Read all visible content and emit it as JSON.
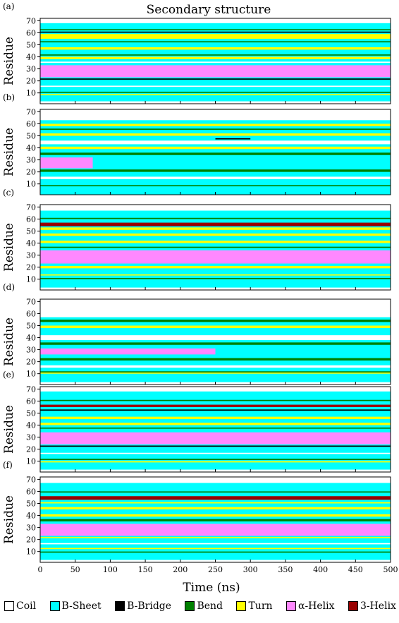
{
  "chart_data": {
    "type": "heatmap",
    "title": "Secondary structure",
    "xlabel": "Time (ns)",
    "ylabel": "Residue",
    "xlim": [
      0,
      500
    ],
    "ylim": [
      1,
      72
    ],
    "x_ticks": [
      0,
      50,
      100,
      150,
      200,
      250,
      300,
      350,
      400,
      450,
      500
    ],
    "y_ticks": [
      10,
      20,
      30,
      40,
      50,
      60,
      70
    ],
    "legend": [
      {
        "label": "Coil",
        "color": "#ffffff"
      },
      {
        "label": "B-Sheet",
        "color": "#00ffff"
      },
      {
        "label": "B-Bridge",
        "color": "#000000"
      },
      {
        "label": "Bend",
        "color": "#008000"
      },
      {
        "label": "Turn",
        "color": "#ffff00"
      },
      {
        "label": "α-Helix",
        "color": "#ff88ff"
      },
      {
        "label": "3-Helix",
        "color": "#990000"
      }
    ],
    "panels": [
      {
        "label": "(a)",
        "bands": [
          {
            "structure": "B-Sheet",
            "start": 1,
            "end": 72,
            "t_start": 0,
            "t_end": 500
          },
          {
            "structure": "Coil",
            "start": 1,
            "end": 3,
            "t_start": 0,
            "t_end": 500
          },
          {
            "structure": "Turn",
            "start": 8,
            "end": 9,
            "t_start": 0,
            "t_end": 500
          },
          {
            "structure": "Bend",
            "start": 10,
            "end": 11,
            "t_start": 0,
            "t_end": 500
          },
          {
            "structure": "Coil",
            "start": 15,
            "end": 16,
            "t_start": 0,
            "t_end": 500
          },
          {
            "structure": "B-Bridge",
            "start": 21,
            "end": 22,
            "t_start": 0,
            "t_end": 500
          },
          {
            "structure": "α-Helix",
            "start": 23,
            "end": 33,
            "t_start": 0,
            "t_end": 500
          },
          {
            "structure": "Coil",
            "start": 35,
            "end": 36,
            "t_start": 0,
            "t_end": 500
          },
          {
            "structure": "Turn",
            "start": 38,
            "end": 40,
            "t_start": 0,
            "t_end": 500
          },
          {
            "structure": "Bend",
            "start": 41,
            "end": 42,
            "t_start": 0,
            "t_end": 500
          },
          {
            "structure": "Turn",
            "start": 46,
            "end": 48,
            "t_start": 0,
            "t_end": 500
          },
          {
            "structure": "Bend",
            "start": 52,
            "end": 53,
            "t_start": 0,
            "t_end": 500
          },
          {
            "structure": "Turn",
            "start": 55,
            "end": 59,
            "t_start": 0,
            "t_end": 500
          },
          {
            "structure": "B-Bridge",
            "start": 60,
            "end": 61,
            "t_start": 0,
            "t_end": 500
          },
          {
            "structure": "Bend",
            "start": 62,
            "end": 63,
            "t_start": 0,
            "t_end": 500
          },
          {
            "structure": "Coil",
            "start": 68,
            "end": 72,
            "t_start": 0,
            "t_end": 500
          }
        ]
      },
      {
        "label": "(b)",
        "bands": [
          {
            "structure": "B-Sheet",
            "start": 1,
            "end": 72,
            "t_start": 0,
            "t_end": 500
          },
          {
            "structure": "Bend",
            "start": 8,
            "end": 9,
            "t_start": 0,
            "t_end": 500
          },
          {
            "structure": "Coil",
            "start": 14,
            "end": 16,
            "t_start": 0,
            "t_end": 500
          },
          {
            "structure": "Bend",
            "start": 20,
            "end": 22,
            "t_start": 0,
            "t_end": 500
          },
          {
            "structure": "α-Helix",
            "start": 23,
            "end": 32,
            "t_start": 0,
            "t_end": 75
          },
          {
            "structure": "Bend",
            "start": 34,
            "end": 36,
            "t_start": 0,
            "t_end": 500
          },
          {
            "structure": "Turn",
            "start": 39,
            "end": 41,
            "t_start": 0,
            "t_end": 500
          },
          {
            "structure": "Coil",
            "start": 43,
            "end": 46,
            "t_start": 0,
            "t_end": 500
          },
          {
            "structure": "B-Bridge",
            "start": 47,
            "end": 48,
            "t_start": 250,
            "t_end": 300
          },
          {
            "structure": "Turn",
            "start": 50,
            "end": 52,
            "t_start": 0,
            "t_end": 500
          },
          {
            "structure": "Bend",
            "start": 55,
            "end": 56,
            "t_start": 0,
            "t_end": 500
          },
          {
            "structure": "Turn",
            "start": 58,
            "end": 60,
            "t_start": 0,
            "t_end": 500
          },
          {
            "structure": "Coil",
            "start": 63,
            "end": 72,
            "t_start": 0,
            "t_end": 500
          }
        ]
      },
      {
        "label": "(c)",
        "bands": [
          {
            "structure": "B-Sheet",
            "start": 1,
            "end": 72,
            "t_start": 0,
            "t_end": 500
          },
          {
            "structure": "Coil",
            "start": 1,
            "end": 3,
            "t_start": 0,
            "t_end": 500
          },
          {
            "structure": "Bend",
            "start": 10,
            "end": 11,
            "t_start": 0,
            "t_end": 500
          },
          {
            "structure": "Turn",
            "start": 13,
            "end": 14,
            "t_start": 0,
            "t_end": 500
          },
          {
            "structure": "Turn",
            "start": 19,
            "end": 21,
            "t_start": 0,
            "t_end": 500
          },
          {
            "structure": "α-Helix",
            "start": 23,
            "end": 34,
            "t_start": 0,
            "t_end": 500
          },
          {
            "structure": "Bend",
            "start": 36,
            "end": 37,
            "t_start": 0,
            "t_end": 500
          },
          {
            "structure": "Turn",
            "start": 40,
            "end": 42,
            "t_start": 0,
            "t_end": 500
          },
          {
            "structure": "Turn",
            "start": 46,
            "end": 48,
            "t_start": 0,
            "t_end": 500
          },
          {
            "structure": "Turn",
            "start": 51,
            "end": 53,
            "t_start": 0,
            "t_end": 500
          },
          {
            "structure": "3-Helix",
            "start": 54,
            "end": 57,
            "t_start": 0,
            "t_end": 500
          },
          {
            "structure": "Bend",
            "start": 60,
            "end": 61,
            "t_start": 0,
            "t_end": 500
          },
          {
            "structure": "Coil",
            "start": 67,
            "end": 72,
            "t_start": 0,
            "t_end": 500
          }
        ]
      },
      {
        "label": "(d)",
        "bands": [
          {
            "structure": "B-Sheet",
            "start": 1,
            "end": 72,
            "t_start": 0,
            "t_end": 500
          },
          {
            "structure": "Coil",
            "start": 1,
            "end": 3,
            "t_start": 0,
            "t_end": 500
          },
          {
            "structure": "Turn",
            "start": 10,
            "end": 11,
            "t_start": 0,
            "t_end": 500
          },
          {
            "structure": "Bend",
            "start": 11,
            "end": 12,
            "t_start": 0,
            "t_end": 500
          },
          {
            "structure": "Coil",
            "start": 15,
            "end": 17,
            "t_start": 0,
            "t_end": 500
          },
          {
            "structure": "Bend",
            "start": 21,
            "end": 23,
            "t_start": 0,
            "t_end": 500
          },
          {
            "structure": "α-Helix",
            "start": 26,
            "end": 31,
            "t_start": 0,
            "t_end": 250
          },
          {
            "structure": "Bend",
            "start": 34,
            "end": 36,
            "t_start": 0,
            "t_end": 500
          },
          {
            "structure": "Coil",
            "start": 38,
            "end": 42,
            "t_start": 0,
            "t_end": 500
          },
          {
            "structure": "Turn",
            "start": 48,
            "end": 50,
            "t_start": 0,
            "t_end": 500
          },
          {
            "structure": "Bend",
            "start": 53,
            "end": 55,
            "t_start": 0,
            "t_end": 500
          },
          {
            "structure": "Coil",
            "start": 57,
            "end": 72,
            "t_start": 0,
            "t_end": 500
          }
        ]
      },
      {
        "label": "(e)",
        "bands": [
          {
            "structure": "B-Sheet",
            "start": 1,
            "end": 72,
            "t_start": 0,
            "t_end": 500
          },
          {
            "structure": "Coil",
            "start": 1,
            "end": 3,
            "t_start": 0,
            "t_end": 500
          },
          {
            "structure": "Turn",
            "start": 9,
            "end": 10,
            "t_start": 0,
            "t_end": 500
          },
          {
            "structure": "Bend",
            "start": 11,
            "end": 12,
            "t_start": 0,
            "t_end": 500
          },
          {
            "structure": "Coil",
            "start": 16,
            "end": 17,
            "t_start": 0,
            "t_end": 500
          },
          {
            "structure": "B-Bridge",
            "start": 22,
            "end": 23,
            "t_start": 0,
            "t_end": 500
          },
          {
            "structure": "α-Helix",
            "start": 24,
            "end": 34,
            "t_start": 0,
            "t_end": 500
          },
          {
            "structure": "Bend",
            "start": 37,
            "end": 38,
            "t_start": 0,
            "t_end": 500
          },
          {
            "structure": "Turn",
            "start": 40,
            "end": 42,
            "t_start": 0,
            "t_end": 500
          },
          {
            "structure": "Turn",
            "start": 45,
            "end": 47,
            "t_start": 0,
            "t_end": 500
          },
          {
            "structure": "B-Bridge",
            "start": 52,
            "end": 53,
            "t_start": 0,
            "t_end": 500
          },
          {
            "structure": "3-Helix",
            "start": 55,
            "end": 57,
            "t_start": 0,
            "t_end": 500
          },
          {
            "structure": "Bend",
            "start": 60,
            "end": 61,
            "t_start": 0,
            "t_end": 500
          },
          {
            "structure": "Coil",
            "start": 68,
            "end": 72,
            "t_start": 0,
            "t_end": 500
          }
        ]
      },
      {
        "label": "(f)",
        "bands": [
          {
            "structure": "B-Sheet",
            "start": 1,
            "end": 72,
            "t_start": 0,
            "t_end": 500
          },
          {
            "structure": "Coil",
            "start": 1,
            "end": 3,
            "t_start": 0,
            "t_end": 500
          },
          {
            "structure": "Bend",
            "start": 9,
            "end": 10,
            "t_start": 0,
            "t_end": 500
          },
          {
            "structure": "Turn",
            "start": 12,
            "end": 13,
            "t_start": 0,
            "t_end": 500
          },
          {
            "structure": "Coil",
            "start": 16,
            "end": 17,
            "t_start": 0,
            "t_end": 500
          },
          {
            "structure": "Turn",
            "start": 21,
            "end": 22,
            "t_start": 0,
            "t_end": 500
          },
          {
            "structure": "α-Helix",
            "start": 23,
            "end": 33,
            "t_start": 0,
            "t_end": 500
          },
          {
            "structure": "Bend",
            "start": 35,
            "end": 37,
            "t_start": 0,
            "t_end": 500
          },
          {
            "structure": "Turn",
            "start": 39,
            "end": 41,
            "t_start": 0,
            "t_end": 500
          },
          {
            "structure": "Turn",
            "start": 45,
            "end": 47,
            "t_start": 0,
            "t_end": 500
          },
          {
            "structure": "Turn",
            "start": 50,
            "end": 51,
            "t_start": 0,
            "t_end": 500
          },
          {
            "structure": "3-Helix",
            "start": 53,
            "end": 56,
            "t_start": 0,
            "t_end": 500
          },
          {
            "structure": "Bend",
            "start": 59,
            "end": 60,
            "t_start": 0,
            "t_end": 500
          },
          {
            "structure": "Coil",
            "start": 67,
            "end": 72,
            "t_start": 0,
            "t_end": 500
          }
        ]
      }
    ]
  }
}
